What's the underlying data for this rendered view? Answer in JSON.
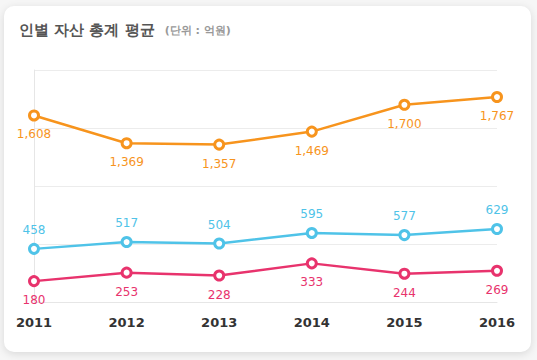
{
  "chart_data": {
    "type": "line",
    "title": "인별 자산 총계 평균",
    "subtitle": "(단위 : 억원)",
    "categories": [
      "2011",
      "2012",
      "2013",
      "2014",
      "2015",
      "2016"
    ],
    "series": [
      {
        "color": "#f7941d",
        "values": [
          1608,
          1369,
          1357,
          1469,
          1700,
          1767
        ],
        "value_labels": [
          "1,608",
          "1,369",
          "1,357",
          "1,469",
          "1,700",
          "1,767"
        ]
      },
      {
        "color": "#4fc3e8",
        "values": [
          458,
          517,
          504,
          595,
          577,
          629
        ]
      },
      {
        "color": "#e8336d",
        "values": [
          180,
          253,
          228,
          333,
          244,
          269
        ]
      }
    ],
    "ylim": [
      0,
      2000
    ],
    "yticks": [
      0,
      500,
      1000,
      1500,
      2000
    ],
    "grid": true,
    "data_labels": true,
    "tick_labels": "x",
    "marker": "circle"
  }
}
